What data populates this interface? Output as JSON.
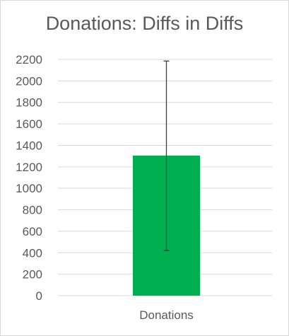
{
  "chart_data": {
    "type": "bar",
    "title": "Donations: Diffs in Diffs",
    "categories": [
      "Donations"
    ],
    "values": [
      1305
    ],
    "error_bars": [
      {
        "low": 420,
        "high": 2185
      }
    ],
    "ylim": [
      0,
      2200
    ],
    "yticks": [
      0,
      200,
      400,
      600,
      800,
      1000,
      1200,
      1400,
      1600,
      1800,
      2000,
      2200
    ],
    "grid": true,
    "bar_color": "#00b050",
    "gridline_color": "#d9d9d9",
    "errorbar_color": "#404040"
  }
}
